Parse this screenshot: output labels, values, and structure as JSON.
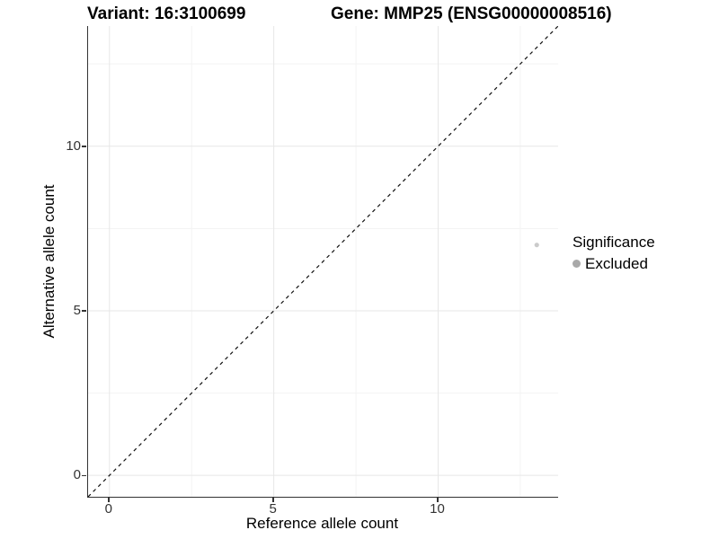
{
  "chart_data": {
    "type": "scatter",
    "title_left": "Variant: 16:3100699",
    "title_right": "Gene: MMP25 (ENSG00000008516)",
    "xlabel": "Reference allele count",
    "ylabel": "Alternative allele count",
    "xlim": [
      -0.65,
      13.65
    ],
    "ylim": [
      -0.65,
      13.65
    ],
    "x_ticks": [
      0,
      5,
      10
    ],
    "y_ticks": [
      0,
      5,
      10
    ],
    "x_minor_gridlines": [
      2.5,
      7.5,
      12.5
    ],
    "y_minor_gridlines": [
      2.5,
      7.5,
      12.5
    ],
    "points": [
      {
        "x": 13,
        "y": 7,
        "significance": "Excluded"
      }
    ],
    "reference_line": {
      "type": "identity y=x",
      "style": "dashed",
      "color": "#111111"
    },
    "legend": {
      "title": "Significance",
      "position": "right",
      "items": [
        {
          "label": "Excluded",
          "color": "#a9a9a9"
        }
      ]
    },
    "grid": true,
    "colors": {
      "background": "#ffffff",
      "axis_line": "#333333",
      "grid_major": "#e7e7e7",
      "grid_minor": "#f3f3f3",
      "tick_text": "#333333",
      "point_fill": "#a9a9a9",
      "point_opacity": 0.6
    }
  }
}
